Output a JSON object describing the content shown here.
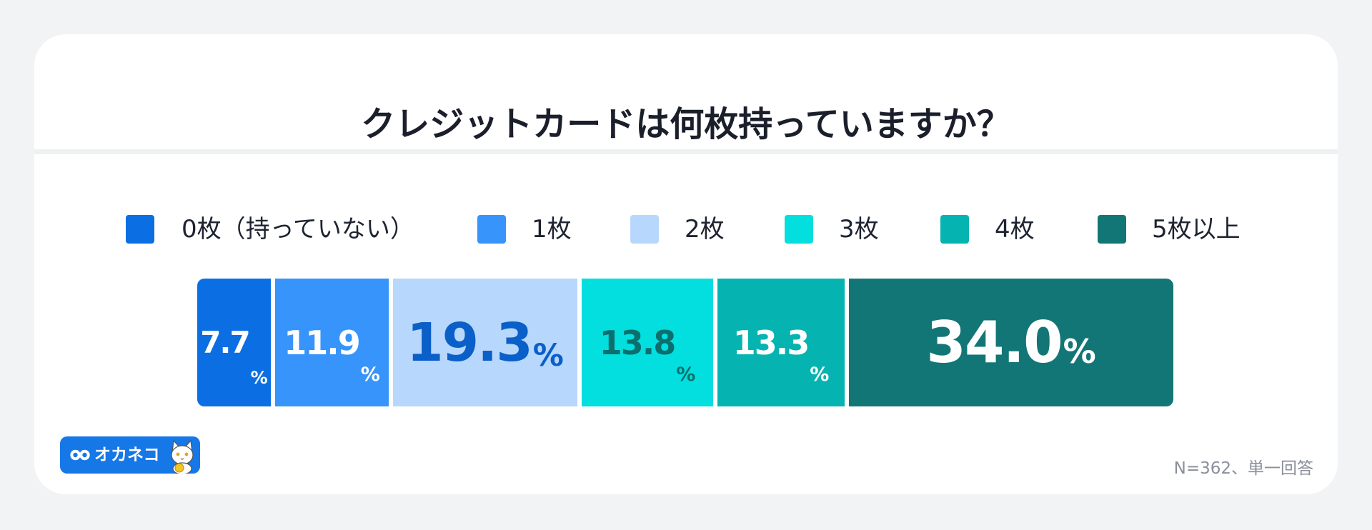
{
  "title": "クレジットカードは何枚持っていますか？",
  "note": "N=362、単一回答",
  "brand": {
    "name": "オカネコ"
  },
  "percent_symbol": "%",
  "colors": {
    "background": "#f2f3f5",
    "card": "#ffffff",
    "title_text": "#1a1f2b",
    "note_text": "#8a8f99",
    "brand_bg": "#1677e6"
  },
  "chart_data": {
    "type": "bar",
    "orientation": "horizontal",
    "stacked": true,
    "title": "クレジットカードは何枚持っていますか？",
    "categories": [
      "0枚（持っていない）",
      "1枚",
      "2枚",
      "3枚",
      "4枚",
      "5枚以上"
    ],
    "values": [
      7.7,
      11.9,
      19.3,
      13.8,
      13.3,
      34.0
    ],
    "labels": [
      "7.7",
      "11.9",
      "19.3",
      "13.8",
      "13.3",
      "34.0"
    ],
    "unit": "%",
    "colors": [
      "#0b6fe3",
      "#3694fb",
      "#b8d7fc",
      "#03dede",
      "#05b3b1",
      "#137676"
    ],
    "label_colors": [
      "#ffffff",
      "#ffffff",
      "#0a5fc9",
      "#0b6f6e",
      "#ffffff",
      "#ffffff"
    ],
    "legend_position": "top",
    "grid": false
  }
}
